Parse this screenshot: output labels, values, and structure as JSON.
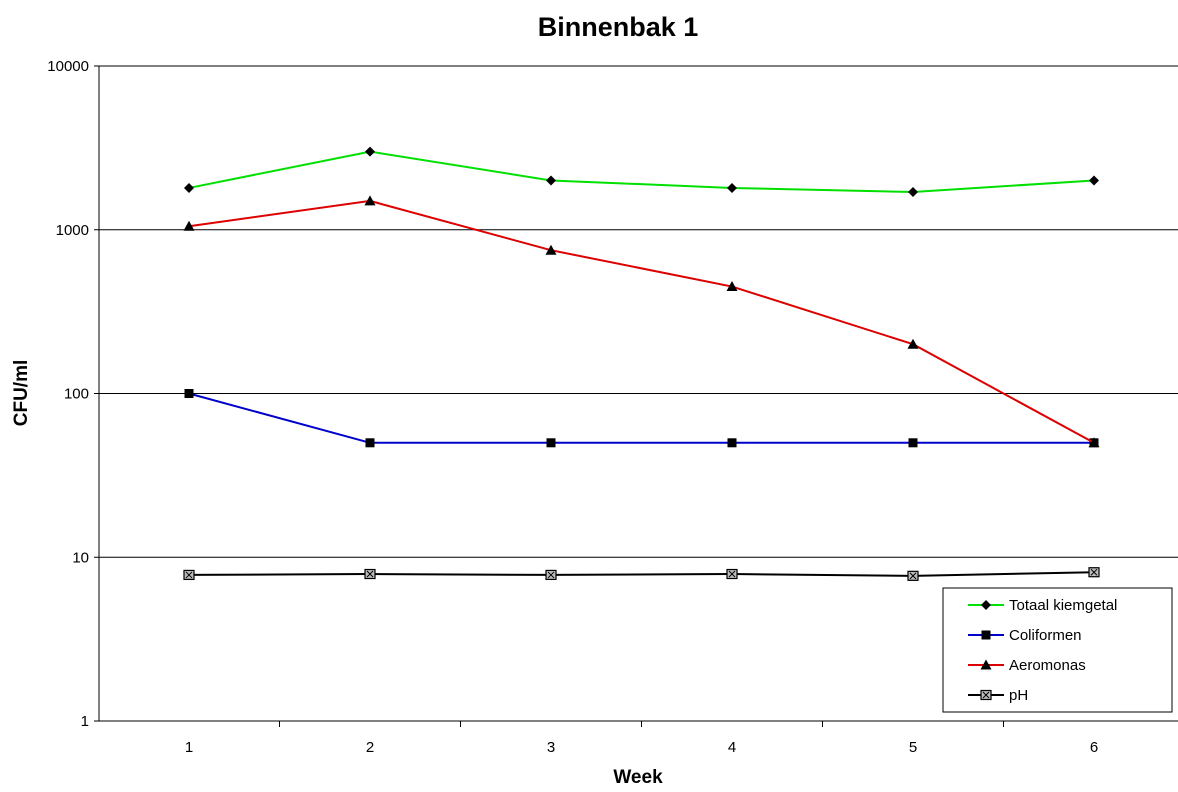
{
  "chart_data": {
    "type": "line",
    "title": "Binnenbak 1",
    "xlabel": "Week",
    "ylabel": "CFU/ml",
    "categories": [
      "1",
      "2",
      "3",
      "4",
      "5",
      "6"
    ],
    "yscale": "log",
    "ylim": [
      1,
      10000
    ],
    "yticks": [
      1,
      10,
      100,
      1000,
      10000
    ],
    "ytick_labels": [
      "1",
      "10",
      "100",
      "1000",
      "10000"
    ],
    "grid": "horizontal major gridlines",
    "legend_position": "bottom-right",
    "series": [
      {
        "name": "Totaal kiemgetal",
        "values": [
          1800,
          3000,
          2000,
          1800,
          1700,
          2000
        ],
        "color": "#00e000",
        "marker": "diamond"
      },
      {
        "name": "Coliformen",
        "values": [
          100,
          50,
          50,
          50,
          50,
          50
        ],
        "color": "#0000cc",
        "marker": "square"
      },
      {
        "name": "Aeromonas",
        "values": [
          1050,
          1500,
          750,
          450,
          200,
          50
        ],
        "color": "#dd0000",
        "marker": "triangle"
      },
      {
        "name": "pH",
        "values": [
          7.8,
          7.9,
          7.8,
          7.9,
          7.7,
          8.1
        ],
        "color": "#000000",
        "marker": "x-square"
      }
    ]
  }
}
